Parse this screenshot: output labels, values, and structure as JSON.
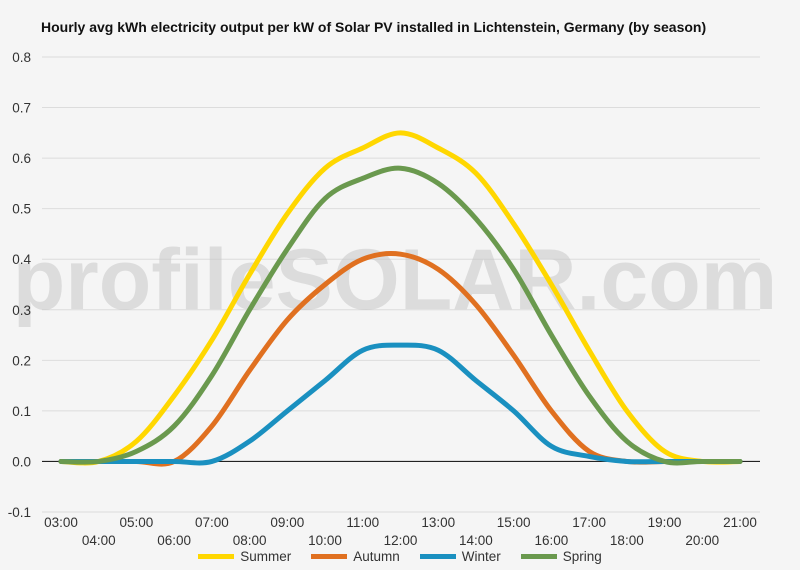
{
  "chart_data": {
    "type": "line",
    "title": "Hourly avg kWh electricity output per kW of Solar PV installed in Lichtenstein, Germany (by season)",
    "watermark": "profileSOLAR.com",
    "x": [
      "03:00",
      "04:00",
      "05:00",
      "06:00",
      "07:00",
      "08:00",
      "09:00",
      "10:00",
      "11:00",
      "12:00",
      "13:00",
      "14:00",
      "15:00",
      "16:00",
      "17:00",
      "18:00",
      "19:00",
      "20:00",
      "21:00"
    ],
    "ylim": [
      -0.1,
      0.8
    ],
    "yticks": [
      "0.8",
      "0.7",
      "0.6",
      "0.5",
      "0.4",
      "0.3",
      "0.2",
      "0.1",
      "0.0",
      "-0.1"
    ],
    "grid": true,
    "legend_position": "bottom",
    "series": [
      {
        "name": "Summer",
        "color": "#ffd700",
        "values": [
          0.0,
          0.0,
          0.04,
          0.13,
          0.24,
          0.37,
          0.49,
          0.58,
          0.62,
          0.65,
          0.62,
          0.57,
          0.47,
          0.35,
          0.22,
          0.1,
          0.02,
          0.0,
          0.0
        ]
      },
      {
        "name": "Autumn",
        "color": "#e07020",
        "values": [
          0.0,
          0.0,
          0.0,
          0.0,
          0.07,
          0.18,
          0.28,
          0.35,
          0.4,
          0.41,
          0.38,
          0.31,
          0.21,
          0.1,
          0.02,
          0.0,
          0.0,
          0.0,
          0.0
        ]
      },
      {
        "name": "Winter",
        "color": "#1a90c0",
        "values": [
          0.0,
          0.0,
          0.0,
          0.0,
          0.0,
          0.04,
          0.1,
          0.16,
          0.22,
          0.23,
          0.22,
          0.16,
          0.1,
          0.03,
          0.01,
          0.0,
          0.0,
          0.0,
          0.0
        ]
      },
      {
        "name": "Spring",
        "color": "#6a994e",
        "values": [
          0.0,
          0.0,
          0.02,
          0.07,
          0.17,
          0.3,
          0.42,
          0.52,
          0.56,
          0.58,
          0.55,
          0.48,
          0.38,
          0.25,
          0.13,
          0.04,
          0.0,
          0.0,
          0.0
        ]
      }
    ]
  }
}
